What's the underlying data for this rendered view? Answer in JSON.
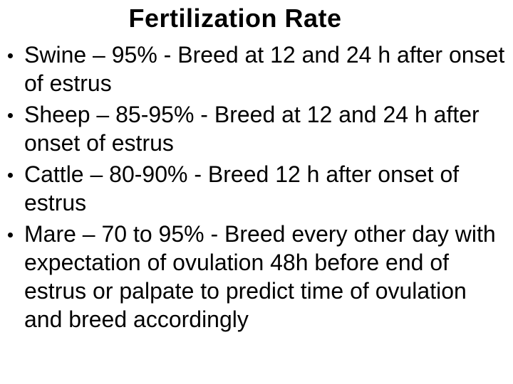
{
  "slide": {
    "title": "Fertilization Rate",
    "bullet_style": "dot",
    "colors": {
      "background": "#ffffff",
      "text": "#000000"
    },
    "bullets": [
      {
        "lines": [
          "Swine – 95% - Breed at 12 and 24 h after onset",
          "of estrus"
        ]
      },
      {
        "lines": [
          "Sheep – 85-95% - Breed at 12 and 24 h after",
          "onset of estrus"
        ]
      },
      {
        "lines": [
          "Cattle – 80-90% - Breed 12 h after onset of",
          "estrus"
        ]
      },
      {
        "lines": [
          "Mare – 70 to 95% - Breed every other day with",
          "expectation of ovulation 48h before end of",
          "estrus or palpate to predict time of ovulation",
          "and breed accordingly"
        ]
      }
    ]
  }
}
